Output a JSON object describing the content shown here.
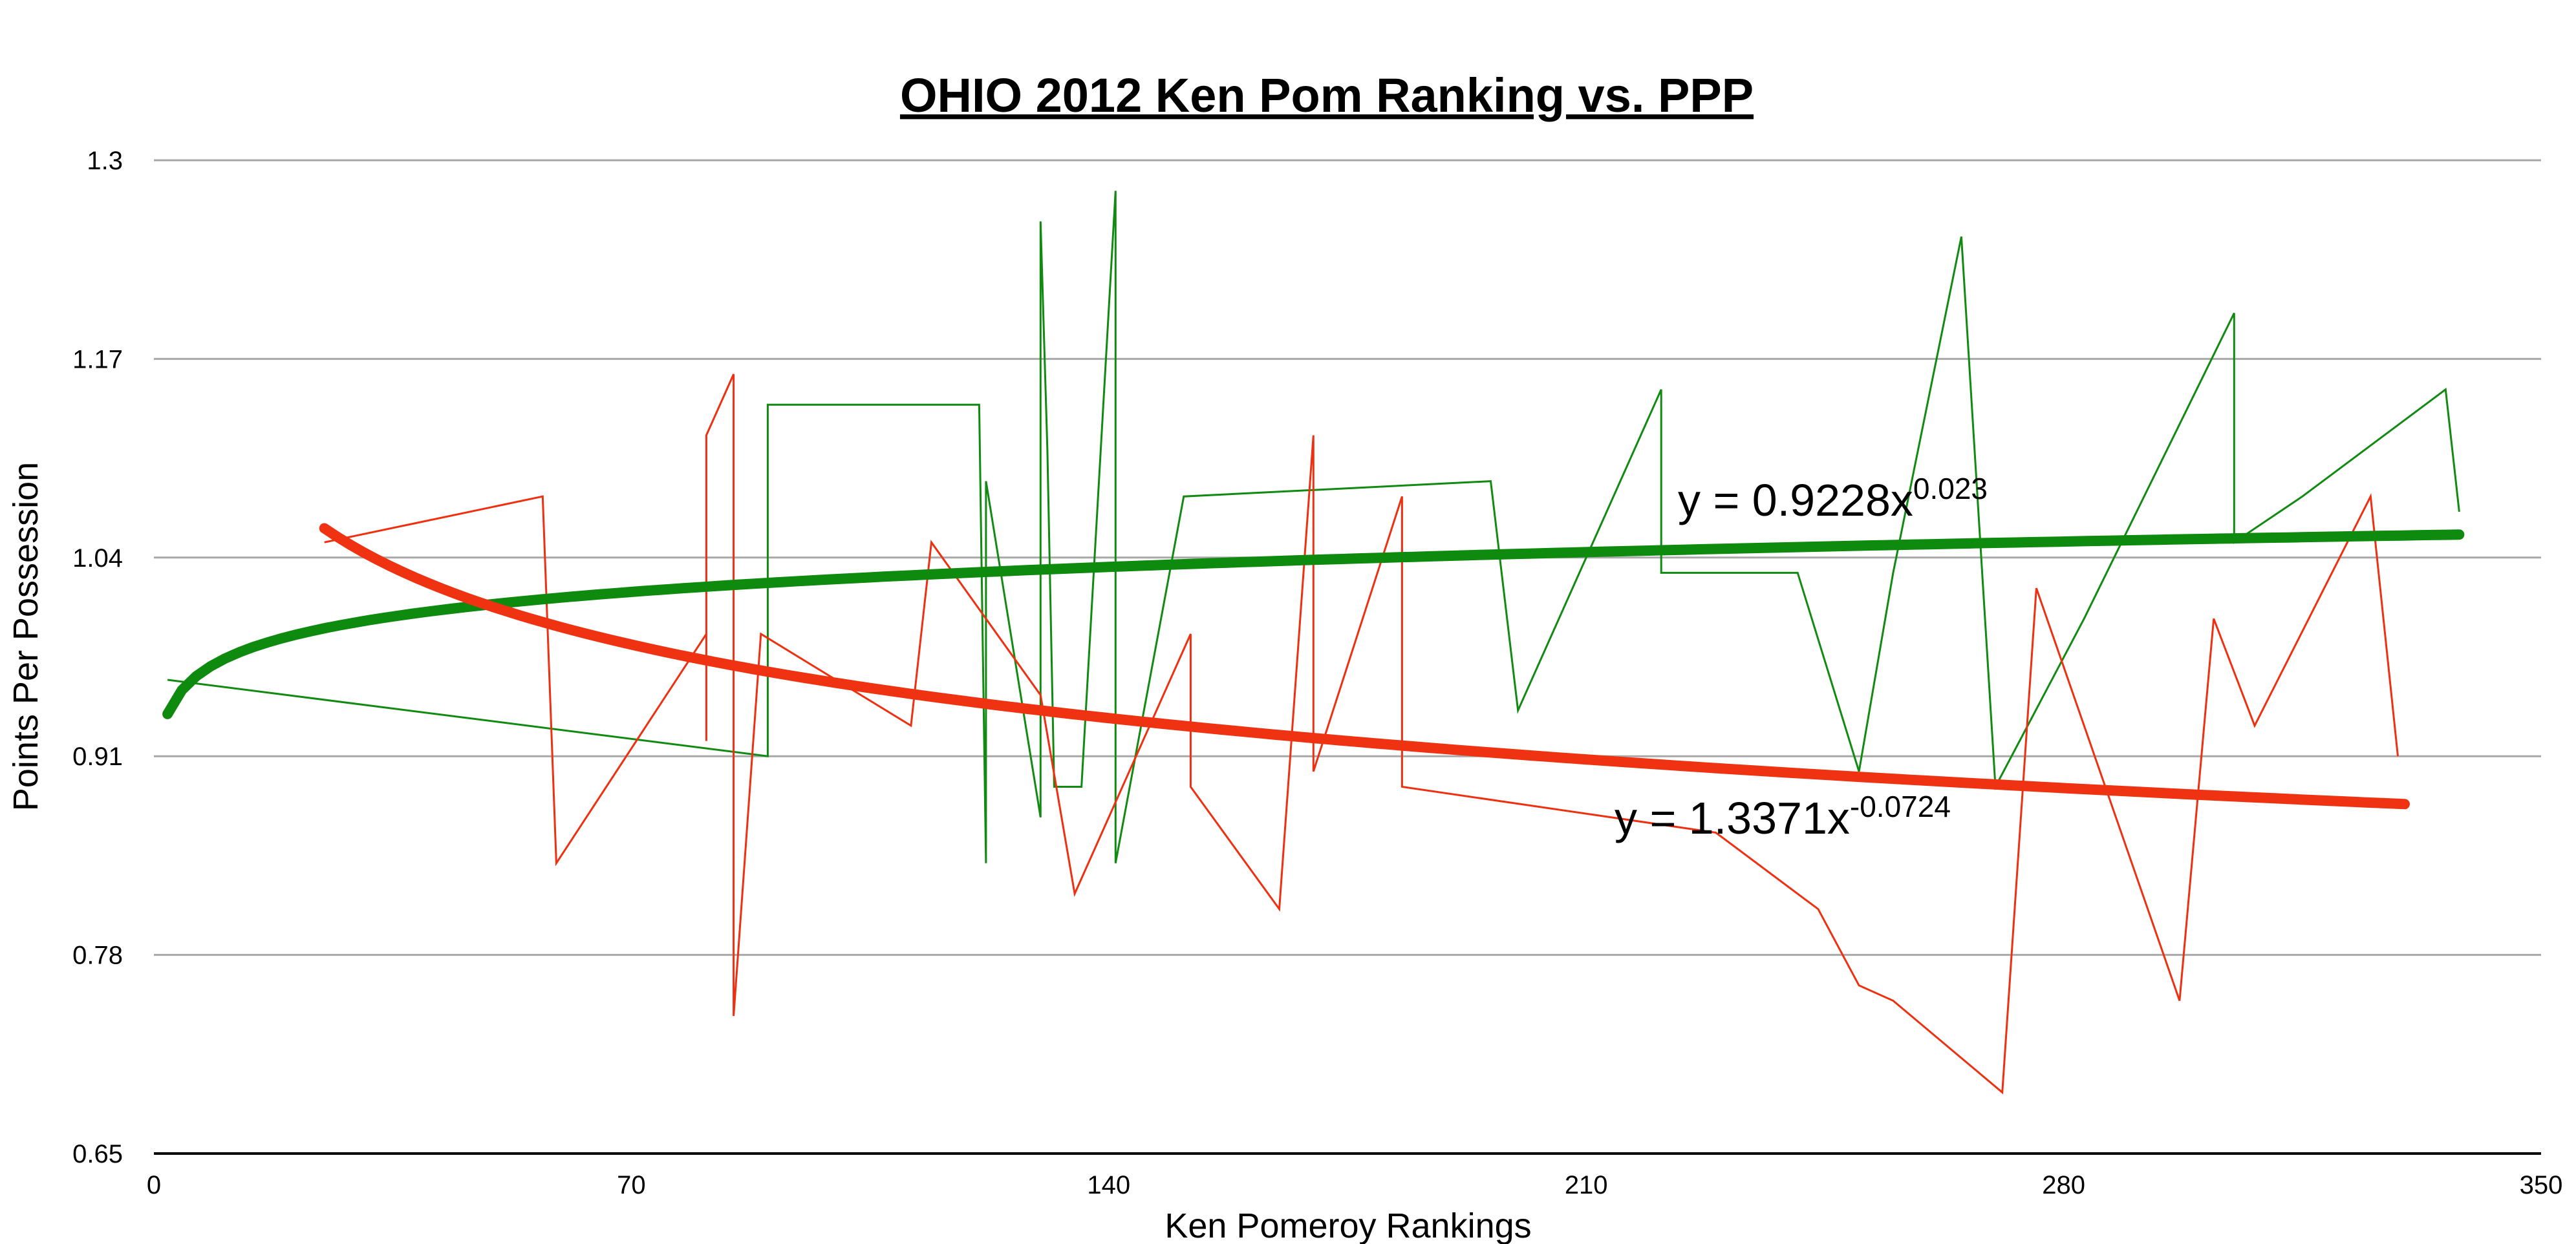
{
  "chart_data": {
    "type": "line",
    "title": "OHIO 2012 Ken Pom Ranking vs. PPP",
    "xlabel": "Ken Pomeroy Rankings",
    "ylabel": "Points Per Possession",
    "xlim": [
      0,
      350
    ],
    "ylim": [
      0.65,
      1.3
    ],
    "x_ticks": [
      "0",
      "70",
      "140",
      "210",
      "280",
      "350"
    ],
    "y_ticks": [
      "0.65",
      "0.78",
      "0.91",
      "1.04",
      "1.17",
      "1.3"
    ],
    "grid": true,
    "series": [
      {
        "color": "#118a11",
        "points": [
          [
            2,
            0.96
          ],
          [
            90,
            0.91
          ],
          [
            90,
            1.14
          ],
          [
            121,
            1.14
          ],
          [
            122,
            0.84
          ],
          [
            122,
            1.09
          ],
          [
            130,
            0.87
          ],
          [
            130,
            1.26
          ],
          [
            131,
            1.11
          ],
          [
            132,
            0.89
          ],
          [
            136,
            0.89
          ],
          [
            141,
            1.28
          ],
          [
            141,
            0.84
          ],
          [
            151,
            1.08
          ],
          [
            196,
            1.09
          ],
          [
            200,
            0.94
          ],
          [
            221,
            1.15
          ],
          [
            221,
            1.03
          ],
          [
            241,
            1.03
          ],
          [
            250,
            0.9
          ],
          [
            255,
            1.03
          ],
          [
            265,
            1.25
          ],
          [
            270,
            0.89
          ],
          [
            283,
            1.0
          ],
          [
            305,
            1.2
          ],
          [
            305,
            1.05
          ],
          [
            315,
            1.08
          ],
          [
            336,
            1.15
          ],
          [
            338,
            1.07
          ]
        ]
      },
      {
        "color": "#ee3010",
        "points": [
          [
            25,
            1.05
          ],
          [
            57,
            1.08
          ],
          [
            59,
            0.84
          ],
          [
            81,
            0.99
          ],
          [
            81,
            0.92
          ],
          [
            81,
            1.12
          ],
          [
            85,
            1.16
          ],
          [
            85,
            0.74
          ],
          [
            89,
            0.99
          ],
          [
            111,
            0.93
          ],
          [
            114,
            1.05
          ],
          [
            130,
            0.95
          ],
          [
            135,
            0.82
          ],
          [
            152,
            0.99
          ],
          [
            152,
            0.89
          ],
          [
            165,
            0.81
          ],
          [
            170,
            1.12
          ],
          [
            170,
            0.9
          ],
          [
            183,
            1.08
          ],
          [
            183,
            0.89
          ],
          [
            229,
            0.86
          ],
          [
            244,
            0.81
          ],
          [
            250,
            0.76
          ],
          [
            255,
            0.75
          ],
          [
            271,
            0.69
          ],
          [
            276,
            1.02
          ],
          [
            297,
            0.75
          ],
          [
            302,
            1.0
          ],
          [
            308,
            0.93
          ],
          [
            325,
            1.08
          ],
          [
            329,
            0.91
          ]
        ]
      }
    ],
    "trendlines": [
      {
        "color": "#0e8a0e",
        "a": 0.9228,
        "b": 0.023,
        "x_range": [
          2,
          338
        ],
        "label_base": "y = 0.9228x",
        "label_exp": "0.023"
      },
      {
        "color": "#ef3312",
        "a": 1.3371,
        "b": -0.0724,
        "x_range": [
          25,
          330
        ],
        "label_base": "y = 1.3371x",
        "label_exp": "-0.0724"
      }
    ]
  }
}
